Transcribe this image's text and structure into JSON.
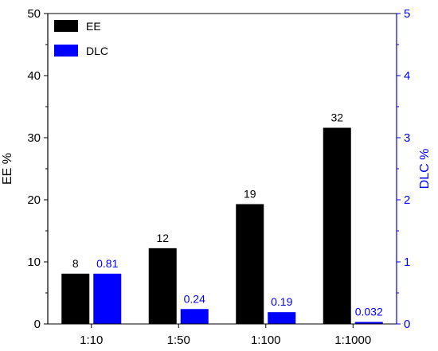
{
  "chart_data": {
    "type": "bar",
    "categories": [
      "1:10",
      "1:50",
      "1:100",
      "1:1000"
    ],
    "series": [
      {
        "name": "EE",
        "axis": "left",
        "color": "#000000",
        "values": [
          8.1,
          12.2,
          19.3,
          31.6
        ],
        "labels": [
          "8",
          "12",
          "19",
          "32"
        ]
      },
      {
        "name": "DLC",
        "axis": "right",
        "color": "#0000ff",
        "values": [
          0.81,
          0.24,
          0.19,
          0.032
        ],
        "labels": [
          "0.81",
          "0.24",
          "0.19",
          "0.032"
        ]
      }
    ],
    "ylabel": "EE %",
    "y2label": "DLC %",
    "ylim": [
      0,
      50
    ],
    "y2lim": [
      0,
      5
    ],
    "yticks": [
      0,
      10,
      20,
      30,
      40,
      50
    ],
    "y2ticks": [
      0,
      1,
      2,
      3,
      4,
      5
    ],
    "legend_position": "top-left",
    "grid": false,
    "left_axis_color": "#000000",
    "right_axis_color": "#0000ff"
  }
}
